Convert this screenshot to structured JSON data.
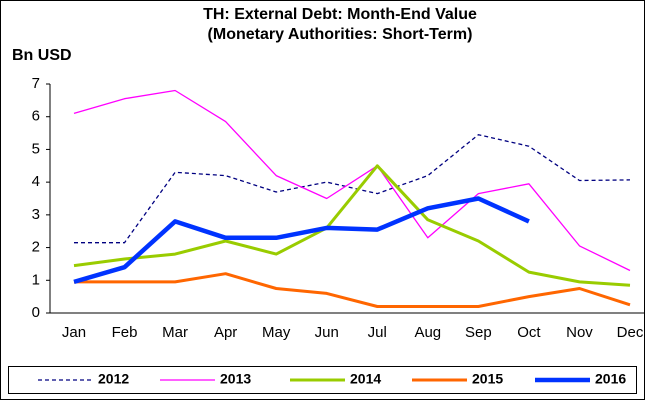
{
  "chart_data": {
    "type": "line",
    "title": "TH: External Debt: Month-End Value",
    "subtitle": "(Monetary Authorities: Short-Term)",
    "y_label": "Bn USD",
    "categories": [
      "Jan",
      "Feb",
      "Mar",
      "Apr",
      "May",
      "Jun",
      "Jul",
      "Aug",
      "Sep",
      "Oct",
      "Nov",
      "Dec"
    ],
    "series": [
      {
        "name": "2012",
        "color": "#000080",
        "dashed": true,
        "width": 1.3,
        "values": [
          2.15,
          2.15,
          4.3,
          4.2,
          3.7,
          4.0,
          3.65,
          4.2,
          5.45,
          5.1,
          4.05,
          4.07
        ]
      },
      {
        "name": "2013",
        "color": "#ff00ff",
        "width": 1.3,
        "values": [
          6.1,
          6.55,
          6.8,
          5.85,
          4.2,
          3.5,
          4.5,
          2.3,
          3.65,
          3.95,
          2.05,
          1.3
        ]
      },
      {
        "name": "2014",
        "color": "#99cc00",
        "width": 3,
        "values": [
          1.45,
          1.65,
          1.8,
          2.2,
          1.8,
          2.6,
          4.5,
          2.85,
          2.2,
          1.25,
          0.95,
          0.85
        ]
      },
      {
        "name": "2015",
        "color": "#ff6600",
        "width": 3,
        "values": [
          0.95,
          0.95,
          0.95,
          1.2,
          0.75,
          0.6,
          0.2,
          0.2,
          0.2,
          0.5,
          0.75,
          0.25
        ]
      },
      {
        "name": "2016",
        "color": "#0033ff",
        "width": 4.5,
        "values": [
          0.95,
          1.4,
          2.8,
          2.3,
          2.3,
          2.6,
          2.55,
          3.2,
          3.5,
          2.8,
          null,
          null
        ]
      }
    ],
    "ylim": [
      0,
      7
    ],
    "yticks": [
      0,
      1,
      2,
      3,
      4,
      5,
      6,
      7
    ],
    "grid": false,
    "legend": "bottom"
  }
}
